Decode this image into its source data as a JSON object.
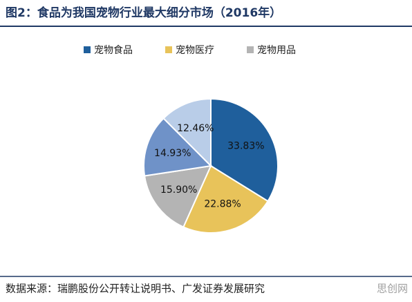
{
  "chart_data": {
    "type": "pie",
    "title": "图2：食品为我国宠物行业最大细分市场（2016年）",
    "categories": [
      "宠物食品",
      "宠物医疗",
      "宠物用品",
      null,
      null
    ],
    "values": [
      33.83,
      22.88,
      15.9,
      14.93,
      12.46
    ],
    "value_labels": [
      "33.83%",
      "22.88%",
      "15.90%",
      "14.93%",
      "12.46%"
    ],
    "colors": [
      "#1f5f9c",
      "#e8c35a",
      "#b4b4b4",
      "#6f92c8",
      "#b9cde8"
    ],
    "legend": "top",
    "source": "数据来源：瑞鹏股份公开转让说明书、广发证券发展研究",
    "watermark": "思创网"
  }
}
